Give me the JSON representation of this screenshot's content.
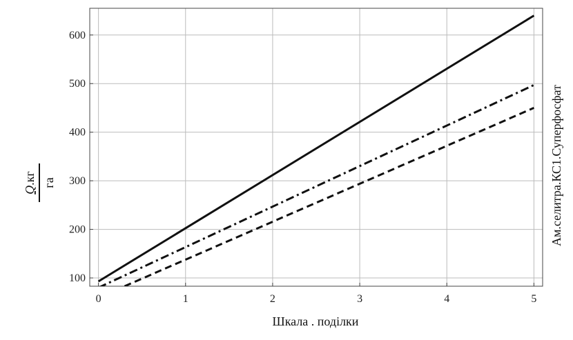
{
  "chart_data": {
    "type": "line",
    "xlabel": "Шкала . поділки",
    "ylabel": {
      "numerator": "Q",
      "numerator_unit": "кг",
      "denominator": "га"
    },
    "legend_text": "Ам.селитра.КС1.Суперфосфат",
    "xlim": [
      -0.1,
      5.1
    ],
    "ylim": [
      83,
      655
    ],
    "x_ticks": [
      0,
      1,
      2,
      3,
      4,
      5
    ],
    "y_ticks": [
      100,
      200,
      300,
      400,
      500,
      600
    ],
    "grid": true,
    "series": [
      {
        "style": "solid",
        "x": [
          0,
          5
        ],
        "y": [
          93,
          640
        ]
      },
      {
        "style": "dashdot",
        "x": [
          0,
          5
        ],
        "y": [
          80,
          497
        ]
      },
      {
        "style": "dashed",
        "x": [
          0.3,
          5
        ],
        "y": [
          83,
          450
        ]
      }
    ],
    "colors": {
      "line": "#111111",
      "grid": "#bbbbbb",
      "frame": "#444444"
    }
  }
}
